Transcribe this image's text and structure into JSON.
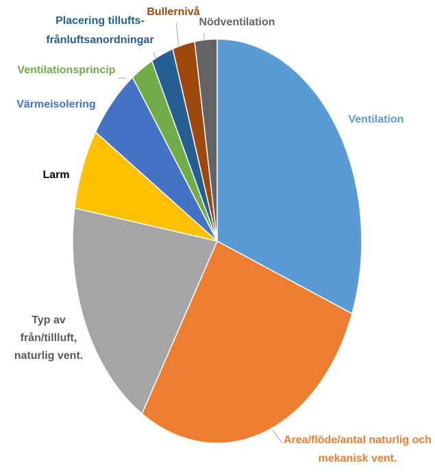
{
  "chart_data": {
    "type": "pie",
    "title": "",
    "slices": [
      {
        "label": "Ventilation",
        "value": 31,
        "color": "#5B9BD5",
        "label_color": "#5B9BD5"
      },
      {
        "label": "Area/flöde/antal naturlig och mekanisk vent.",
        "label_lines": [
          "Area/flöde/antal naturlig och",
          "mekanisk vent."
        ],
        "value": 28,
        "color": "#ED7D31",
        "label_color": "#ED7D31"
      },
      {
        "label": "Typ av från/tillluft, naturlig vent.",
        "label_lines": [
          "Typ av",
          "från/tillluft,",
          "naturlig vent."
        ],
        "value": 19,
        "color": "#A5A5A5",
        "label_color": "#595959"
      },
      {
        "label": "Larm",
        "value": 6.5,
        "color": "#FFC000",
        "label_color": "#000000"
      },
      {
        "label": "Värmeisolering",
        "value": 6,
        "color": "#4472C4",
        "label_color": "#4472C4"
      },
      {
        "label": "Ventilationsprincip",
        "value": 2.5,
        "color": "#70AD47",
        "label_color": "#70AD47"
      },
      {
        "label": "Placering tillufts-frånluftsanordningar",
        "label_lines": [
          "Placering tillufts-",
          "frånluftsanordningar"
        ],
        "value": 2.5,
        "color": "#255E91",
        "label_color": "#255E91"
      },
      {
        "label": "Bullernivå",
        "value": 2.5,
        "color": "#9E480E",
        "label_color": "#9E480E"
      },
      {
        "label": "Nödventilation",
        "value": 2.5,
        "color": "#636363",
        "label_color": "#636363"
      }
    ],
    "start_angle": "12 o'clock",
    "direction": "clockwise",
    "legend": "none"
  }
}
